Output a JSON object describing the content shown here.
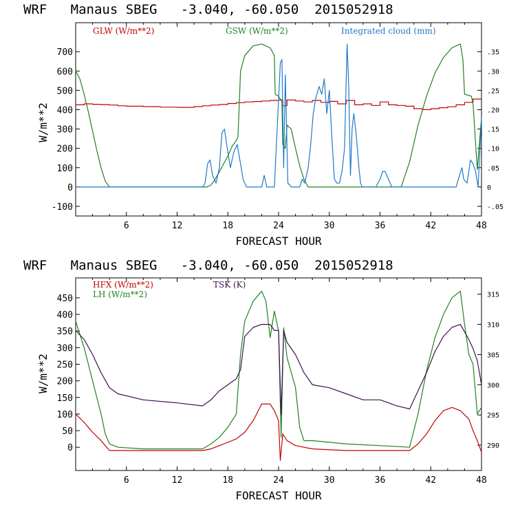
{
  "chart_data": [
    {
      "type": "line",
      "title": "WRF   Manaus SBEG   -3.040, -60.050  2015052918",
      "xlabel": "FORECAST HOUR",
      "ylabel": "W/m**2",
      "xlim": [
        0,
        48
      ],
      "ylim": [
        -150,
        850
      ],
      "y2lim": [
        -0.075,
        0.425
      ],
      "xticks": [
        6,
        12,
        18,
        24,
        30,
        36,
        42,
        48
      ],
      "yticks": [
        -100,
        0,
        100,
        200,
        300,
        400,
        500,
        600,
        700
      ],
      "y2ticks": [
        -0.05,
        0,
        0.05,
        0.1,
        0.15,
        0.2,
        0.25,
        0.3,
        0.35
      ],
      "y2ticklabels": [
        "-.05",
        "0",
        ".05",
        ".10",
        ".15",
        ".20",
        ".25",
        ".30",
        ".35"
      ],
      "series": [
        {
          "name": "GLW (W/m**2)",
          "color": "#c00000",
          "axis": "left",
          "x": [
            0,
            1,
            2,
            3,
            4,
            5,
            6,
            8,
            10,
            12,
            14,
            15,
            16,
            17,
            18,
            19,
            20,
            21,
            22,
            23,
            24,
            24.5,
            25,
            26,
            27,
            28,
            29,
            30,
            31,
            32,
            33,
            34,
            35,
            36,
            37,
            38,
            39,
            40,
            41,
            42,
            43,
            44,
            45,
            46,
            47,
            48
          ],
          "values": [
            425,
            430,
            428,
            426,
            424,
            420,
            418,
            416,
            413,
            412,
            416,
            420,
            424,
            427,
            432,
            436,
            440,
            442,
            445,
            448,
            450,
            420,
            450,
            445,
            440,
            448,
            438,
            443,
            430,
            448,
            425,
            430,
            422,
            440,
            425,
            422,
            418,
            405,
            400,
            405,
            410,
            415,
            425,
            438,
            455,
            455
          ]
        },
        {
          "name": "GSW (W/m**2)",
          "color": "#208020",
          "axis": "left",
          "x": [
            0,
            0.5,
            1,
            1.5,
            2,
            2.5,
            3,
            3.5,
            4,
            4.5,
            5,
            10,
            15.5,
            16,
            16.5,
            17,
            17.5,
            18,
            18.5,
            19,
            19.2,
            19.5,
            20,
            21,
            22,
            23,
            23.5,
            23.6,
            24,
            24.4,
            24.5,
            24.8,
            25,
            25.5,
            26,
            26.5,
            27,
            27.5,
            28,
            38.5,
            39.5,
            40.5,
            41.5,
            42.5,
            43.5,
            44.5,
            45.5,
            45.8,
            46,
            46.8,
            47,
            47.5,
            48
          ],
          "values": [
            600,
            560,
            480,
            390,
            290,
            190,
            100,
            30,
            0,
            0,
            0,
            0,
            0,
            10,
            40,
            80,
            120,
            160,
            210,
            240,
            260,
            600,
            680,
            730,
            740,
            720,
            680,
            480,
            470,
            440,
            220,
            200,
            320,
            300,
            200,
            110,
            40,
            0,
            0,
            0,
            130,
            320,
            470,
            590,
            670,
            720,
            740,
            660,
            480,
            470,
            430,
            90,
            360
          ]
        },
        {
          "name": "Integrated cloud (mm)",
          "color": "#1f78c8",
          "axis": "right",
          "x": [
            0,
            15,
            15.3,
            15.6,
            15.9,
            16.2,
            16.6,
            17,
            17.3,
            17.6,
            18,
            18.3,
            18.7,
            19.1,
            19.5,
            19.8,
            20.2,
            22,
            22.3,
            22.6,
            23.5,
            24.2,
            24.4,
            24.6,
            24.8,
            25.1,
            25.5,
            26.5,
            26.8,
            27.1,
            27.5,
            27.8,
            28.1,
            28.4,
            28.8,
            29.1,
            29.4,
            29.7,
            30,
            30.3,
            30.6,
            30.9,
            31.2,
            31.5,
            31.8,
            32.1,
            32.3,
            32.5,
            32.7,
            32.9,
            33.2,
            33.5,
            33.7,
            33.9,
            34.1,
            34.4,
            34.7,
            35.5,
            36,
            36.3,
            36.6,
            37,
            37.4,
            37.8,
            38.3,
            39.5,
            40,
            40.5,
            45,
            45.4,
            45.7,
            45.9,
            46.3,
            46.7,
            47,
            47.3,
            47.6,
            48
          ],
          "values": [
            0,
            0,
            0.01,
            0.06,
            0.07,
            0.03,
            0.01,
            0.05,
            0.14,
            0.15,
            0.09,
            0.05,
            0.09,
            0.11,
            0.06,
            0.02,
            0,
            0,
            0.03,
            0,
            0,
            0.32,
            0.33,
            0.05,
            0.29,
            0.01,
            0,
            0,
            0.02,
            0.01,
            0.05,
            0.11,
            0.19,
            0.23,
            0.26,
            0.24,
            0.28,
            0.19,
            0.25,
            0.13,
            0.02,
            0.01,
            0.01,
            0.04,
            0.1,
            0.37,
            0.26,
            0.03,
            0.15,
            0.19,
            0.13,
            0.05,
            0.01,
            0,
            0,
            0,
            0,
            0,
            0.02,
            0.04,
            0.04,
            0.02,
            0,
            0,
            0,
            0,
            0,
            0,
            0,
            0.03,
            0.05,
            0.02,
            0.01,
            0.07,
            0.06,
            0.04,
            0,
            0.18
          ]
        }
      ]
    },
    {
      "type": "line",
      "title": "WRF   Manaus SBEG   -3.040, -60.050  2015052918",
      "xlabel": "FORECAST HOUR",
      "ylabel": "W/m**2",
      "xlim": [
        0,
        48
      ],
      "ylim": [
        -70,
        510
      ],
      "y2lim": [
        285.8,
        317.7
      ],
      "xticks": [
        6,
        12,
        18,
        24,
        30,
        36,
        42,
        48
      ],
      "yticks": [
        0,
        50,
        100,
        150,
        200,
        250,
        300,
        350,
        400,
        450
      ],
      "y2ticks": [
        290,
        295,
        300,
        305,
        310,
        315
      ],
      "y2ticklabels": [
        "290",
        "295",
        "300",
        "305",
        "310",
        "315"
      ],
      "series": [
        {
          "name": "HFX (W/m**2)",
          "color": "#c00000",
          "axis": "left",
          "x": [
            0,
            1,
            2,
            3,
            3.5,
            4,
            5,
            8,
            12,
            15,
            16,
            17,
            18,
            19,
            20,
            21,
            22,
            23,
            23.5,
            24,
            24.2,
            24.5,
            25,
            26,
            28,
            32,
            36,
            39.5,
            40.5,
            41.5,
            42.5,
            43.5,
            44.5,
            45.5,
            46.5,
            47,
            47.5,
            48
          ],
          "values": [
            100,
            75,
            45,
            20,
            5,
            -10,
            -10,
            -10,
            -10,
            -10,
            -5,
            5,
            15,
            25,
            45,
            80,
            130,
            130,
            110,
            80,
            -40,
            40,
            20,
            5,
            -5,
            -10,
            -10,
            -10,
            10,
            40,
            80,
            110,
            120,
            110,
            85,
            50,
            20,
            -15
          ]
        },
        {
          "name": "LH (W/m**2)",
          "color": "#208020",
          "axis": "left",
          "x": [
            0,
            1,
            2,
            3,
            3.5,
            4,
            5,
            8,
            12,
            15,
            16,
            17,
            18,
            19,
            19.5,
            20,
            21,
            22,
            22.5,
            23,
            23.5,
            24,
            24.3,
            24.6,
            25,
            26,
            26.5,
            27,
            28,
            32,
            36,
            39.5,
            40.5,
            41.5,
            42.5,
            43.5,
            44.5,
            45.5,
            46,
            46.5,
            47,
            47.5,
            48
          ],
          "values": [
            380,
            300,
            200,
            100,
            40,
            10,
            0,
            -5,
            -5,
            -5,
            10,
            30,
            60,
            100,
            280,
            380,
            440,
            470,
            440,
            330,
            410,
            350,
            30,
            360,
            270,
            180,
            60,
            20,
            20,
            10,
            5,
            0,
            100,
            230,
            330,
            400,
            450,
            470,
            370,
            280,
            250,
            100,
            120
          ]
        },
        {
          "name": "TSK (K)",
          "color": "#3c0f50",
          "axis": "right",
          "x": [
            0,
            1,
            2,
            3,
            4,
            5,
            8,
            12,
            15,
            16,
            17,
            18,
            19,
            19.5,
            20,
            21,
            22,
            23,
            23.5,
            24,
            24.3,
            24.6,
            25,
            26,
            27,
            28,
            30,
            32,
            34,
            36,
            38,
            39.5,
            40.5,
            41.5,
            42.5,
            43.5,
            44.5,
            45.5,
            46.5,
            47,
            47.5,
            48
          ],
          "values": [
            309,
            307.5,
            305,
            302,
            299.5,
            298.5,
            297.5,
            297,
            296.5,
            297.5,
            299,
            300,
            301,
            302.5,
            308,
            309.5,
            310,
            310,
            309,
            309,
            295,
            309,
            307,
            305,
            302,
            300,
            299.5,
            298.5,
            297.5,
            297.5,
            296.5,
            296,
            299,
            302,
            305.5,
            308,
            309.5,
            310,
            307.5,
            306,
            304,
            300
          ]
        }
      ]
    }
  ]
}
